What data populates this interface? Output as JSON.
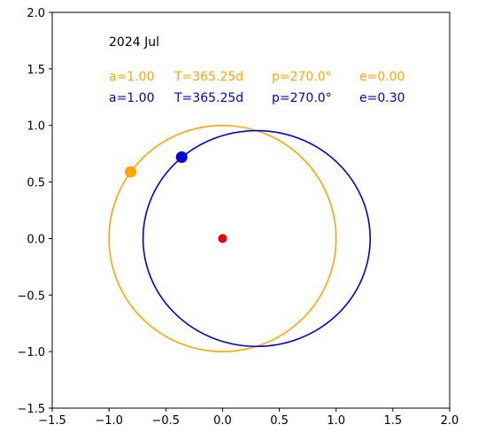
{
  "chart_data": {
    "type": "scatter",
    "title": "",
    "xlabel": "",
    "ylabel": "",
    "xlim": [
      -1.5,
      2.0
    ],
    "ylim": [
      -1.5,
      2.0
    ],
    "xticks": [
      -1.5,
      -1.0,
      -0.5,
      0.0,
      0.5,
      1.0,
      1.5,
      2.0
    ],
    "yticks": [
      -1.5,
      -1.0,
      -0.5,
      0.0,
      0.5,
      1.0,
      1.5,
      2.0
    ],
    "xtick_labels": [
      "−1.5",
      "−1.0",
      "−0.5",
      "0.0",
      "0.5",
      "1.0",
      "1.5",
      "2.0"
    ],
    "ytick_labels": [
      "−1.5",
      "−1.0",
      "−0.5",
      "0.0",
      "0.5",
      "1.0",
      "1.5",
      "2.0"
    ],
    "grid": false,
    "date_label": "2024 Jul",
    "sun": {
      "x": 0.0,
      "y": 0.0,
      "color": "#e8000b"
    },
    "orbits": [
      {
        "color": "#ffa500",
        "a": 1.0,
        "e": 0.0,
        "info": {
          "a": "a=1.00",
          "T": "T=365.25d",
          "p": "p=270.0°",
          "e": "e=0.00"
        },
        "planet": {
          "x": -0.81,
          "y": 0.59
        }
      },
      {
        "color": "#0000dd",
        "a": 1.0,
        "e": 0.3,
        "info": {
          "a": "a=1.00",
          "T": "T=365.25d",
          "p": "p=270.0°",
          "e": "e=0.30"
        },
        "planet": {
          "x": -0.36,
          "y": 0.72
        }
      }
    ]
  }
}
